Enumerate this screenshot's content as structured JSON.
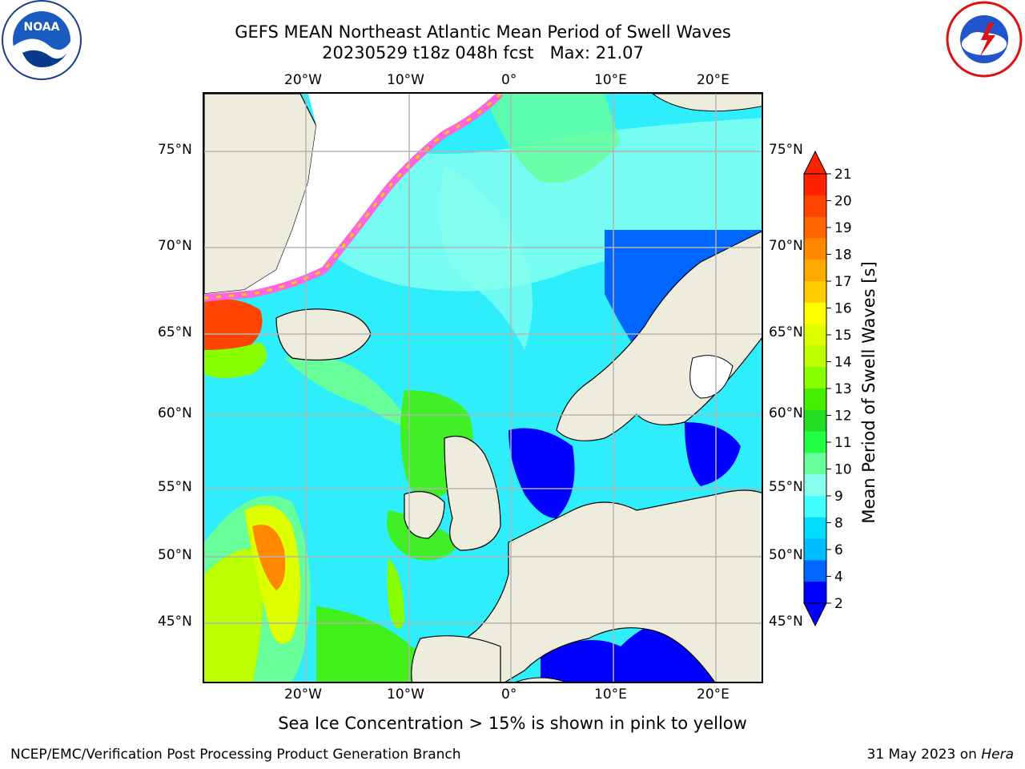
{
  "title": {
    "line1": "GEFS MEAN Northeast Atlantic Mean Period of Swell Waves",
    "line2": "20230529 t18z 048h fcst   Max: 21.07"
  },
  "logos": {
    "left": {
      "icon": "noaa-logo-icon",
      "text": "NOAA"
    },
    "right": {
      "icon": "nws-logo-icon",
      "text": "NATIONAL WEATHER SERVICE"
    }
  },
  "map": {
    "lon_ticks": [
      "20°W",
      "10°W",
      "0°",
      "10°E",
      "20°E"
    ],
    "lat_ticks": [
      "75°N",
      "70°N",
      "65°N",
      "60°N",
      "55°N",
      "50°N",
      "45°N"
    ],
    "colors": {
      "land": "#eeecdc",
      "ocean_base": "#2eeefc",
      "ice": "#ff66dd",
      "grid": "#b4b4b4"
    }
  },
  "colorbar": {
    "label": "Mean Period of Swell Waves [s]",
    "ticks": [
      "21",
      "20",
      "19",
      "18",
      "17",
      "16",
      "15",
      "14",
      "13",
      "12",
      "11",
      "10",
      "9",
      "8",
      "6",
      "4",
      "2"
    ],
    "colors": [
      "#ff2200",
      "#ff4400",
      "#ff6600",
      "#ff8800",
      "#ffaa00",
      "#ffcc00",
      "#ffff00",
      "#ddff00",
      "#bbff00",
      "#88ff00",
      "#44ee00",
      "#22dd22",
      "#22ff44",
      "#66ff99",
      "#88ffee",
      "#44ffff",
      "#00ddff",
      "#00bbff",
      "#0066ff",
      "#0000ff"
    ]
  },
  "note": "Sea Ice Concentration > 15% is shown in pink to yellow",
  "footer": {
    "left": "NCEP/EMC/Verification Post Processing Product Generation Branch",
    "right_prefix": "31 May 2023 on ",
    "right_machine": "Hera"
  }
}
